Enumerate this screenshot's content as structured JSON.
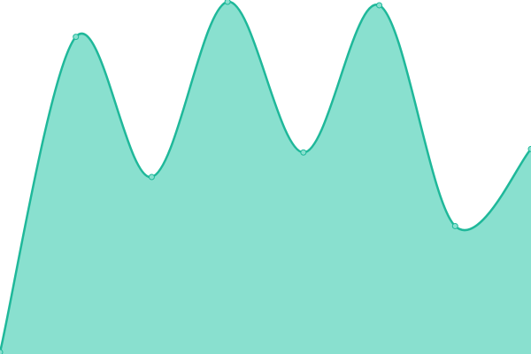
{
  "chart_data": {
    "type": "area",
    "categories": [
      null,
      null,
      null,
      null,
      null,
      null,
      null,
      null
    ],
    "values": [
      0,
      90,
      50,
      100,
      57,
      99,
      36,
      58
    ],
    "ylim": [
      0,
      100
    ],
    "color": "#1fb89a",
    "fill": "#89e0cf"
  }
}
